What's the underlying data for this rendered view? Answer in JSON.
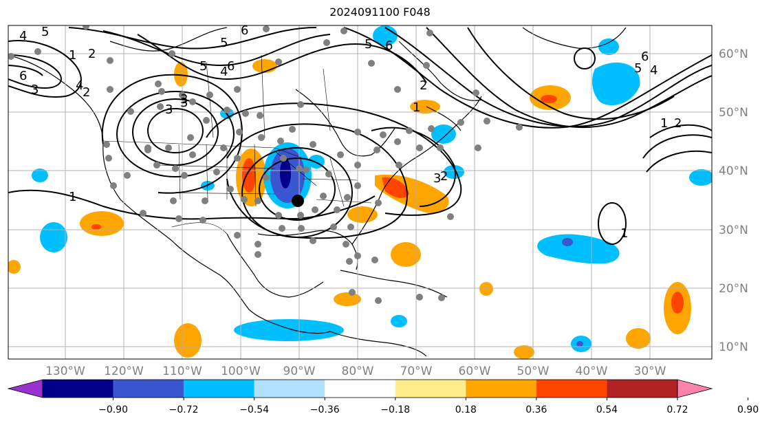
{
  "title": "2024091100 F048",
  "lon_labels": [
    "130°W",
    "120°W",
    "110°W",
    "100°W",
    "90°W",
    "80°W",
    "70°W",
    "60°W",
    "50°W",
    "40°W",
    "30°W"
  ],
  "lat_labels": [
    "60°N",
    "50°N",
    "40°N",
    "30°N",
    "20°N",
    "10°N"
  ],
  "colorbar": {
    "ticks": [
      "−0.90",
      "−0.72",
      "−0.54",
      "−0.36",
      "−0.18",
      "0.18",
      "0.36",
      "0.54",
      "0.72",
      "0.90"
    ],
    "colors": [
      "#9a32cd",
      "#00008b",
      "#3a56d0",
      "#00bfff",
      "#b0e2ff",
      "#ffffff",
      "#ffec8b",
      "#ffa500",
      "#ff4500",
      "#b22222",
      "#ff82ab"
    ]
  },
  "contour_labels": [
    "4",
    "5",
    "6",
    "3",
    "1",
    "2",
    "6",
    "5",
    "4",
    "3",
    "6",
    "5",
    "4",
    "3",
    "2",
    "1",
    "5",
    "6",
    "2",
    "3",
    "1",
    "6",
    "5",
    "4",
    "2",
    "1",
    "2",
    "3",
    "1"
  ],
  "colors": {
    "contour": "#000000",
    "point": "#808080",
    "grid": "#b0b0b0",
    "tick_label": "#808080"
  }
}
